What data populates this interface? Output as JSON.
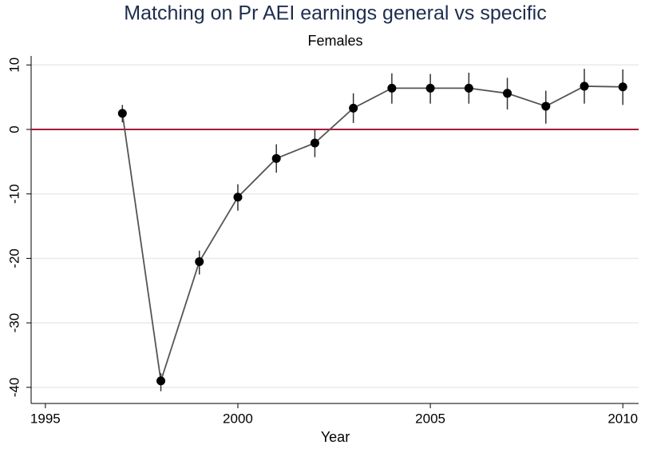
{
  "chart_data": {
    "type": "line",
    "title": "Matching on Pr AEI earnings general vs specific",
    "subtitle": "Females",
    "x_label": "Year",
    "x": [
      1997,
      1998,
      1999,
      2000,
      2001,
      2002,
      2003,
      2004,
      2005,
      2006,
      2007,
      2008,
      2009,
      2010
    ],
    "series": [
      {
        "color": "#000000",
        "line_color": "#555555",
        "values": [
          2.5,
          -39,
          -20.5,
          -10.5,
          -4.5,
          -2.1,
          3.3,
          6.4,
          6.4,
          6.4,
          5.6,
          3.6,
          6.7,
          6.6
        ],
        "lower": [
          1.1,
          -40.6,
          -22.5,
          -12.6,
          -6.7,
          -4.3,
          1.0,
          4.0,
          4.0,
          4.0,
          3.1,
          0.9,
          4.0,
          3.8
        ],
        "upper": [
          3.8,
          -37.8,
          -18.8,
          -8.5,
          -2.3,
          0,
          5.6,
          8.7,
          8.6,
          8.8,
          8.0,
          6.0,
          9.4,
          9.3
        ]
      }
    ],
    "reference_line": {
      "value": 0,
      "color": "#a8183f"
    },
    "xlim": [
      1994.63,
      2010.41
    ],
    "xticks": [
      1995,
      2000,
      2005,
      2010
    ],
    "ylim": [
      -42.5,
      11.4
    ],
    "yticks": [
      -40,
      -30,
      -20,
      -10,
      0,
      10
    ],
    "grid": true
  }
}
